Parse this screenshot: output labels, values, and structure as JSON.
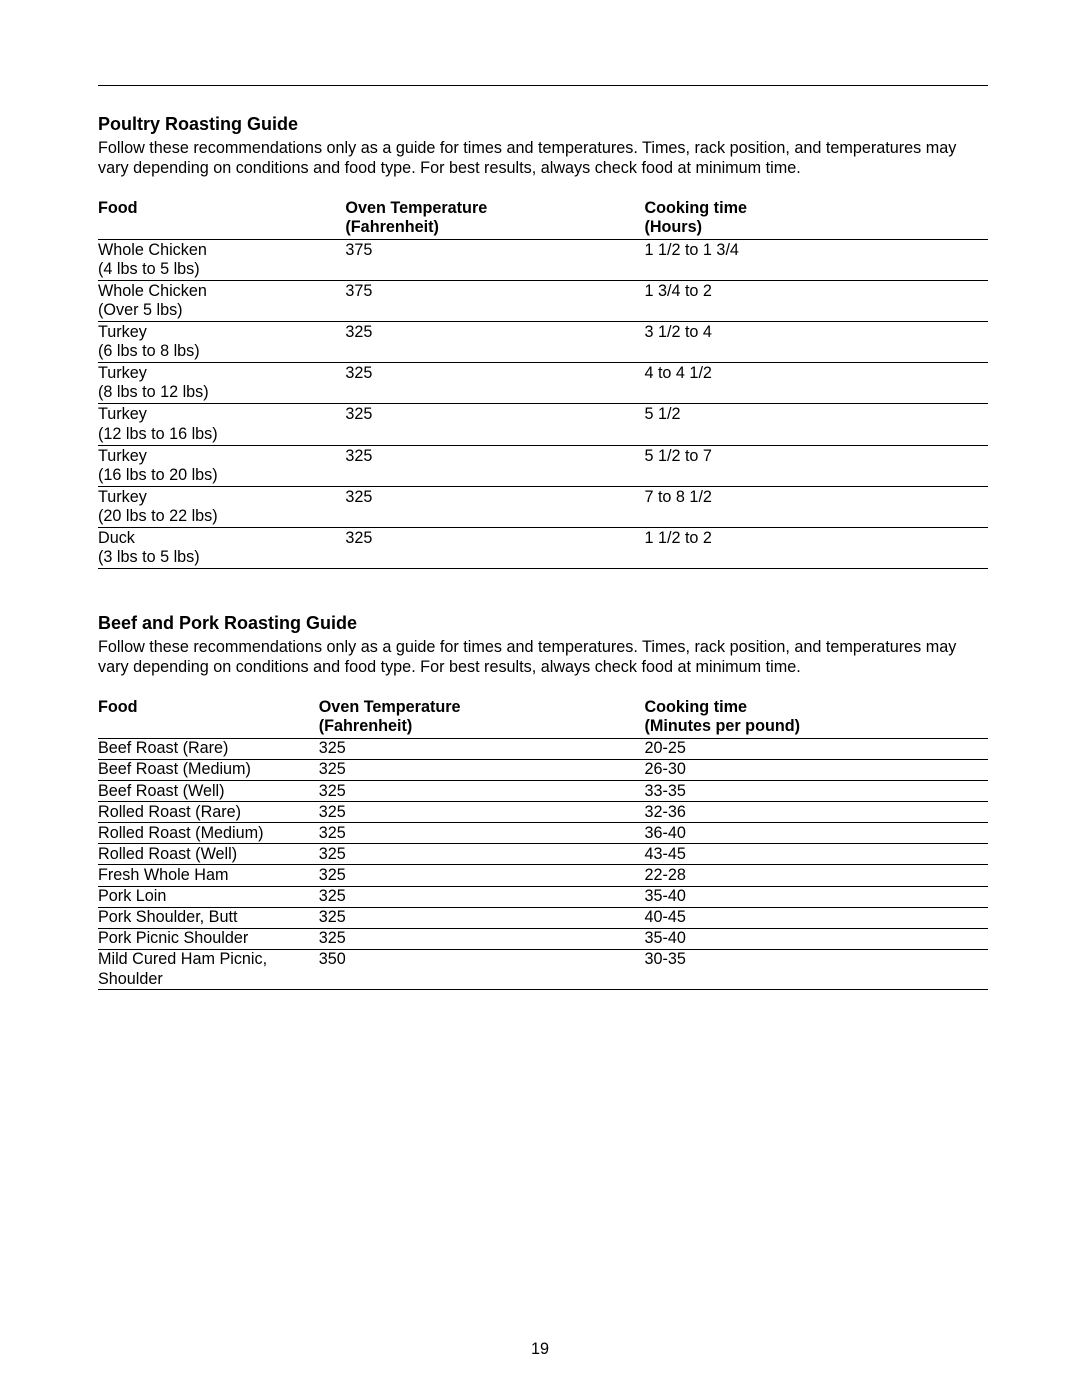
{
  "page_number": "19",
  "poultry": {
    "title": "Poultry Roasting Guide",
    "desc": "Follow these recommendations only as a guide for times and temperatures. Times, rack position, and temperatures may vary depending on conditions and food type. For best results, always check food at minimum time.",
    "headers": {
      "food": "Food",
      "temp_l1": "Oven Temperature",
      "temp_l2": "(Fahrenheit)",
      "time_l1": "Cooking time",
      "time_l2": "(Hours)"
    },
    "rows": [
      {
        "food_l1": "Whole Chicken",
        "food_l2": "(4 lbs to 5 lbs)",
        "temp": "375",
        "time": "1 1/2 to 1 3/4"
      },
      {
        "food_l1": "Whole Chicken",
        "food_l2": "(Over 5 lbs)",
        "temp": "375",
        "time": "1 3/4 to 2"
      },
      {
        "food_l1": "Turkey",
        "food_l2": "(6 lbs to 8 lbs)",
        "temp": "325",
        "time": "3 1/2 to 4"
      },
      {
        "food_l1": "Turkey",
        "food_l2": "(8 lbs to 12 lbs)",
        "temp": "325",
        "time": "4 to 4 1/2"
      },
      {
        "food_l1": "Turkey",
        "food_l2": "(12 lbs to 16 lbs)",
        "temp": "325",
        "time": "5 1/2"
      },
      {
        "food_l1": "Turkey",
        "food_l2": "(16 lbs to 20 lbs)",
        "temp": "325",
        "time": "5 1/2 to 7"
      },
      {
        "food_l1": "Turkey",
        "food_l2": "(20 lbs to 22 lbs)",
        "temp": "325",
        "time": "7 to 8 1/2"
      },
      {
        "food_l1": "Duck",
        "food_l2": "(3 lbs to 5 lbs)",
        "temp": "325",
        "time": "1 1/2 to 2"
      }
    ]
  },
  "beefpork": {
    "title": "Beef and Pork Roasting Guide",
    "desc": "Follow these recommendations only as a guide for times and temperatures. Times, rack position, and temperatures may vary depending on conditions and food type. For best results, always check food at minimum time.",
    "headers": {
      "food": "Food",
      "temp_l1": "Oven Temperature",
      "temp_l2": "(Fahrenheit)",
      "time_l1": "Cooking time",
      "time_l2": "(Minutes per pound)"
    },
    "rows": [
      {
        "food_l1": "Beef Roast (Rare)",
        "food_l2": "",
        "temp": "325",
        "time": "20-25"
      },
      {
        "food_l1": "Beef Roast (Medium)",
        "food_l2": "",
        "temp": "325",
        "time": "26-30"
      },
      {
        "food_l1": "Beef Roast (Well)",
        "food_l2": "",
        "temp": "325",
        "time": "33-35"
      },
      {
        "food_l1": "Rolled Roast (Rare)",
        "food_l2": "",
        "temp": "325",
        "time": "32-36"
      },
      {
        "food_l1": "Rolled Roast (Medium)",
        "food_l2": "",
        "temp": "325",
        "time": "36-40"
      },
      {
        "food_l1": "Rolled Roast (Well)",
        "food_l2": "",
        "temp": "325",
        "time": "43-45"
      },
      {
        "food_l1": "Fresh Whole Ham",
        "food_l2": "",
        "temp": "325",
        "time": "22-28"
      },
      {
        "food_l1": "Pork Loin",
        "food_l2": "",
        "temp": "325",
        "time": "35-40"
      },
      {
        "food_l1": "Pork Shoulder, Butt",
        "food_l2": "",
        "temp": "325",
        "time": "40-45"
      },
      {
        "food_l1": "Pork Picnic Shoulder",
        "food_l2": "",
        "temp": "325",
        "time": "35-40"
      },
      {
        "food_l1": "Mild Cured Ham Picnic,",
        "food_l2": "Shoulder",
        "temp": "350",
        "time": "30-35"
      }
    ]
  }
}
